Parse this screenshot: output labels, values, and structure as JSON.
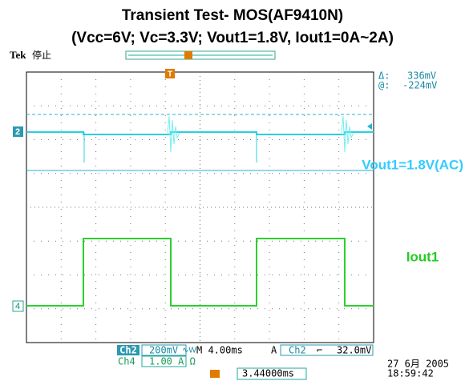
{
  "title": "Transient Test- MOS(AF9410N)",
  "subtitle": "(Vcc=6V; Vc=3.3V; Vout1=1.8V, Iout1=0A~2A)",
  "scope": {
    "brand": "Tek",
    "state": "停止",
    "cursor": {
      "delta_label": "Δ:",
      "delta": "336mV",
      "at_label": "@:",
      "at": "-224mV"
    },
    "markers": {
      "ch2": "2",
      "ch4": "4",
      "trigger": "T"
    },
    "annotations": {
      "vout": "Vout1=1.8V(AC)",
      "iout": "Iout1"
    },
    "status": {
      "ch2": "Ch2",
      "ch2_scale": "200mV",
      "bw": "∿W",
      "timebase": "M 4.00ms",
      "acq": "A",
      "trig_src": "Ch2",
      "slope": "⌐",
      "trig_level": "32.0mV",
      "ch4": "Ch4",
      "ch4_scale": "1.00 A Ω",
      "position": "3.44000ms",
      "date": "27 6月 2005",
      "time": "18:59:42"
    }
  }
}
